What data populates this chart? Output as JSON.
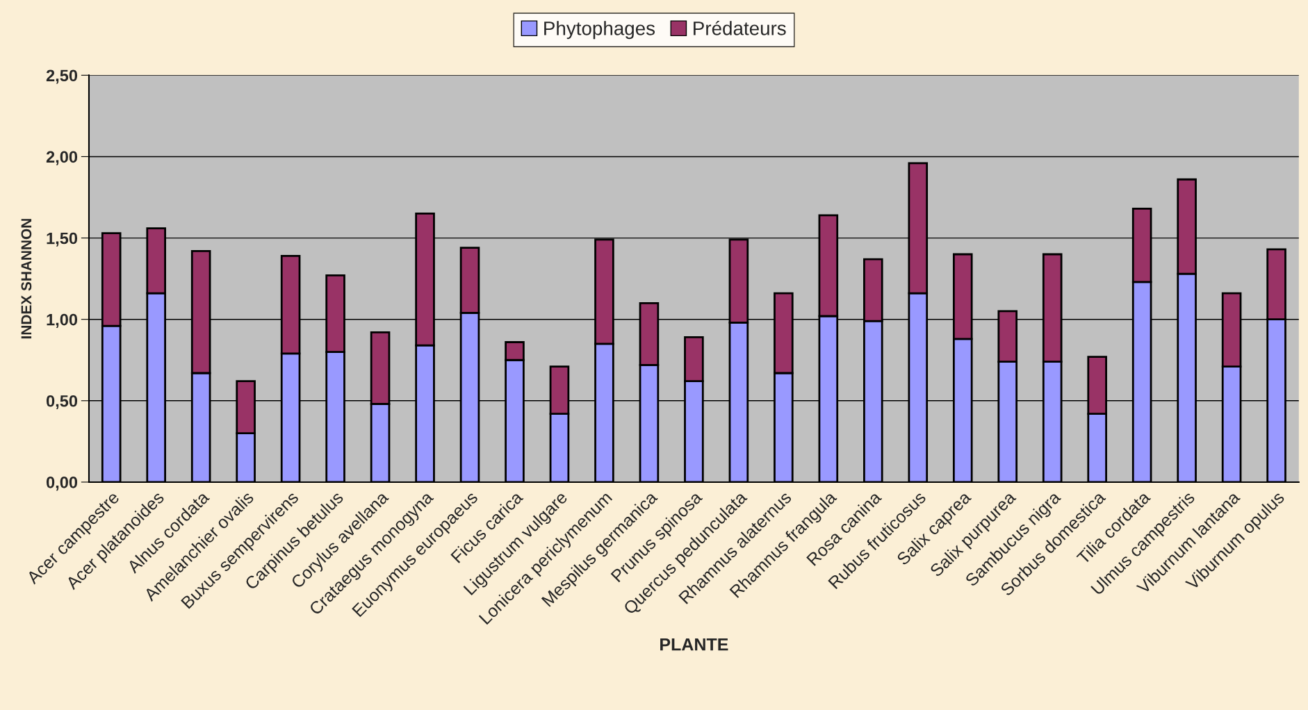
{
  "chart_data": {
    "type": "bar",
    "stacked": true,
    "xlabel": "PLANTE",
    "ylabel": "INDEX SHANNON",
    "categories": [
      "Acer campestre",
      "Acer platanoides",
      "Alnus cordata",
      "Amelanchier ovalis",
      "Buxus sempervirens",
      "Carpinus betulus",
      "Corylus avellana",
      "Crataegus monogyna",
      "Euonymus europaeus",
      "Ficus carica",
      "Ligustrum vulgare",
      "Lonicera periclymenum",
      "Mespilus germanica",
      "Prunus spinosa",
      "Quercus pedunculata",
      "Rhamnus alaternus",
      "Rhamnus frangula",
      "Rosa canina",
      "Rubus fruticosus",
      "Salix caprea",
      "Salix purpurea",
      "Sambucus nigra",
      "Sorbus domestica",
      "Tilia cordata",
      "Ulmus campestris",
      "Viburnum lantana",
      "Viburnum opulus"
    ],
    "series": [
      {
        "name": "Phytophages",
        "color": "#9999ff",
        "values": [
          0.96,
          1.16,
          0.67,
          0.3,
          0.79,
          0.8,
          0.48,
          0.84,
          1.04,
          0.75,
          0.42,
          0.85,
          0.72,
          0.62,
          0.98,
          0.67,
          1.02,
          0.99,
          1.16,
          0.88,
          0.74,
          0.74,
          0.42,
          1.23,
          1.28,
          0.71,
          1.0
        ]
      },
      {
        "name": "Prédateurs",
        "color": "#993366",
        "values": [
          0.57,
          0.4,
          0.75,
          0.32,
          0.6,
          0.47,
          0.44,
          0.81,
          0.4,
          0.11,
          0.29,
          0.64,
          0.38,
          0.27,
          0.51,
          0.49,
          0.62,
          0.38,
          0.8,
          0.52,
          0.31,
          0.66,
          0.35,
          0.45,
          0.58,
          0.45,
          0.43
        ]
      }
    ],
    "ylim": [
      0,
      2.5
    ],
    "yticks": [
      {
        "value": 0,
        "label": "0,00"
      },
      {
        "value": 0.5,
        "label": "0,50"
      },
      {
        "value": 1.0,
        "label": "1,00"
      },
      {
        "value": 1.5,
        "label": "1,50"
      },
      {
        "value": 2.0,
        "label": "2,00"
      },
      {
        "value": 2.5,
        "label": "2,50"
      }
    ],
    "grid": "y",
    "legend": "top"
  }
}
